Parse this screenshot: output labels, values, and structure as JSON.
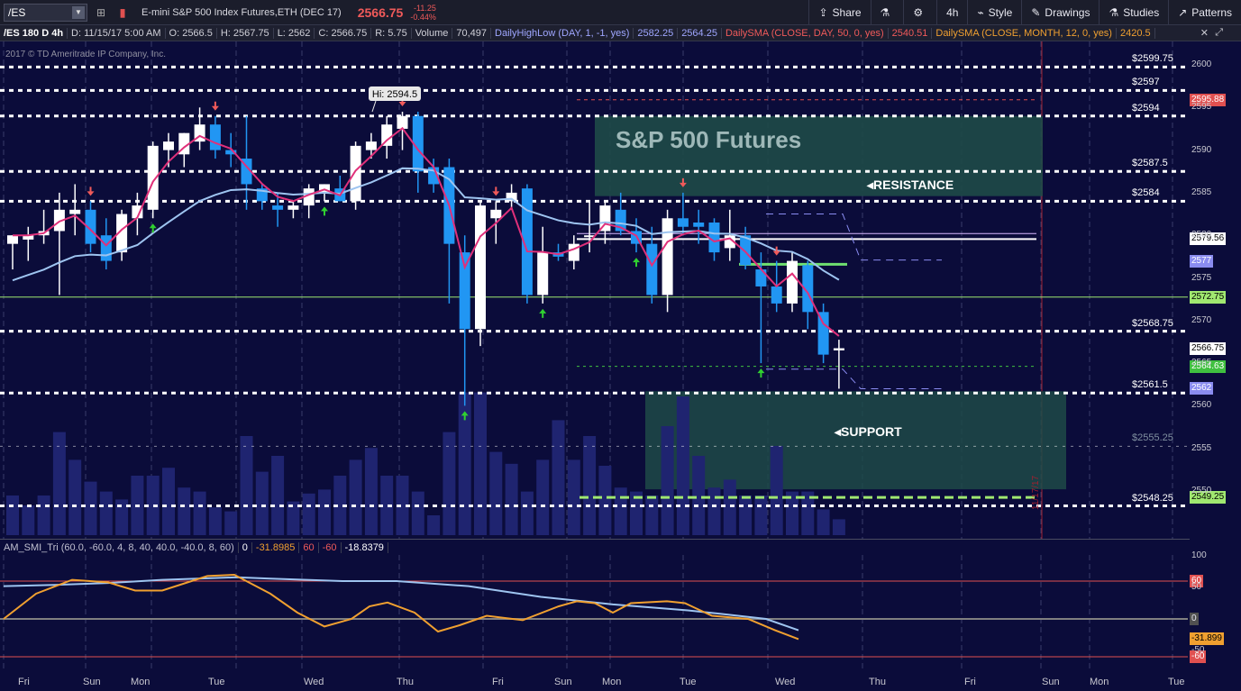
{
  "toolbar": {
    "symbol": "/ES",
    "description": "E-mini S&P 500 Index Futures,ETH (DEC 17)",
    "last_price": "2566.75",
    "change": "-11.25",
    "change_pct": "-0.44%",
    "share": "Share",
    "timeframe": "4h",
    "style": "Style",
    "drawings": "Drawings",
    "studies": "Studies",
    "patterns": "Patterns"
  },
  "infobar": {
    "symbol": "/ES 180 D 4h",
    "date": "D: 11/15/17 5:00 AM",
    "open": "O: 2566.5",
    "high": "H: 2567.75",
    "low": "L: 2562",
    "close": "C: 2566.75",
    "range": "R: 5.75",
    "volume_label": "Volume",
    "volume": "70,497",
    "dhl_study": "DailyHighLow (DAY, 1, -1, yes)",
    "dhl_high": "2582.25",
    "dhl_low": "2564.25",
    "sma_day": "DailySMA (CLOSE, DAY, 50, 0, yes)",
    "sma_day_value": "2540.51",
    "sma_month": "DailySMA (CLOSE, MONTH, 12, 0, yes)",
    "sma_month_value": "2420.5"
  },
  "copyright": "2017 © TD Ameritrade IP Company, Inc.",
  "chart_title": "S&P 500 Futures",
  "resistance_label": "RESISTANCE",
  "support_label": "SUPPORT",
  "hi_label": "Hi: 2594.5",
  "level_labels": [
    "$2599.75",
    "$2597",
    "$2594",
    "$2587.5",
    "$2584",
    "$2568.75",
    "$2561.5",
    "$2555.25",
    "$2548.25"
  ],
  "y_ticks": [
    "2600",
    "2595",
    "2590",
    "2585",
    "2580",
    "2575",
    "2570",
    "2565",
    "2560",
    "2555",
    "2550"
  ],
  "price_tags": [
    {
      "text": "2595.88",
      "bg": "#e05050",
      "fg": "#ffffff",
      "price": 2595.88
    },
    {
      "text": "2579.56",
      "bg": "#ffffff",
      "fg": "#000000",
      "price": 2579.56
    },
    {
      "text": "2577",
      "bg": "#8a8cf0",
      "fg": "#ffffff",
      "price": 2577
    },
    {
      "text": "2572.75",
      "bg": "#a0e870",
      "fg": "#000000",
      "price": 2572.75
    },
    {
      "text": "2566.75",
      "bg": "#ffffff",
      "fg": "#000000",
      "price": 2566.75
    },
    {
      "text": "2564.63",
      "bg": "#40c040",
      "fg": "#ffffff",
      "price": 2564.63
    },
    {
      "text": "2562",
      "bg": "#8a8cf0",
      "fg": "#ffffff",
      "price": 2562
    },
    {
      "text": "2549.25",
      "bg": "#a0e870",
      "fg": "#000000",
      "price": 2549.25
    }
  ],
  "x_days": [
    "Fri",
    "Sun",
    "Mon",
    "Tue",
    "Wed",
    "Thu",
    "Fri",
    "Sun",
    "Mon",
    "Tue",
    "Wed",
    "Thu",
    "Fri",
    "Sun",
    "Mon",
    "Tue"
  ],
  "indicator": {
    "name": "AM_SMI_Tri (60.0, -60.0, 4, 8, 40, 40.0, -40.0, 8, 60)",
    "v0": "0",
    "v1": "-31.8985",
    "v2": "60",
    "v3": "-60",
    "v4": "-18.8379",
    "scale": [
      "100",
      "50",
      "0",
      "-50"
    ],
    "tags": [
      {
        "text": "60",
        "bg": "#e05050",
        "fg": "#ffffff"
      },
      {
        "text": "0",
        "bg": "#505050",
        "fg": "#ffffff"
      },
      {
        "text": "-31.899",
        "bg": "#f0a030",
        "fg": "#000000"
      },
      {
        "text": "-60",
        "bg": "#e05050",
        "fg": "#ffffff"
      }
    ]
  },
  "vertical_date": "11/17/17",
  "colors": {
    "background": "#0b0c3a",
    "up_candle": "#ffffff",
    "down_candle": "#2196f3",
    "ema": "#e0307a",
    "sma": "#9ec4f0",
    "zone": "#1e4a48"
  },
  "chart_data": {
    "type": "candlestick",
    "ylim": [
      2545,
      2602
    ],
    "candles": [
      {
        "o": 2579,
        "h": 2580,
        "l": 2576,
        "c": 2580
      },
      {
        "o": 2579.5,
        "h": 2581,
        "l": 2577,
        "c": 2580
      },
      {
        "o": 2580,
        "h": 2583,
        "l": 2579,
        "c": 2580.5
      },
      {
        "o": 2580.5,
        "h": 2585,
        "l": 2573,
        "c": 2583
      },
      {
        "o": 2582.5,
        "h": 2586,
        "l": 2580,
        "c": 2583
      },
      {
        "o": 2583,
        "h": 2584,
        "l": 2578,
        "c": 2579
      },
      {
        "o": 2580,
        "h": 2582,
        "l": 2576,
        "c": 2577
      },
      {
        "o": 2578,
        "h": 2583,
        "l": 2577,
        "c": 2582.5
      },
      {
        "o": 2582,
        "h": 2585,
        "l": 2580,
        "c": 2583.5
      },
      {
        "o": 2583,
        "h": 2591,
        "l": 2582,
        "c": 2590.5
      },
      {
        "o": 2590,
        "h": 2592,
        "l": 2588,
        "c": 2591
      },
      {
        "o": 2589.5,
        "h": 2592,
        "l": 2588,
        "c": 2592
      },
      {
        "o": 2591,
        "h": 2595,
        "l": 2590,
        "c": 2593
      },
      {
        "o": 2593,
        "h": 2594,
        "l": 2589,
        "c": 2590
      },
      {
        "o": 2590,
        "h": 2592,
        "l": 2588,
        "c": 2589.5
      },
      {
        "o": 2589,
        "h": 2594,
        "l": 2583,
        "c": 2586
      },
      {
        "o": 2585.5,
        "h": 2586,
        "l": 2583,
        "c": 2584
      },
      {
        "o": 2583.5,
        "h": 2585,
        "l": 2581,
        "c": 2583
      },
      {
        "o": 2583,
        "h": 2584,
        "l": 2582,
        "c": 2583.5
      },
      {
        "o": 2583.5,
        "h": 2586,
        "l": 2582,
        "c": 2585.5
      },
      {
        "o": 2585,
        "h": 2586,
        "l": 2584,
        "c": 2586
      },
      {
        "o": 2585.5,
        "h": 2587,
        "l": 2584,
        "c": 2584
      },
      {
        "o": 2584,
        "h": 2591,
        "l": 2583,
        "c": 2590.5
      },
      {
        "o": 2590,
        "h": 2592,
        "l": 2589,
        "c": 2591
      },
      {
        "o": 2590.5,
        "h": 2594,
        "l": 2589,
        "c": 2593
      },
      {
        "o": 2592.5,
        "h": 2594.5,
        "l": 2590,
        "c": 2594
      },
      {
        "o": 2594,
        "h": 2594.5,
        "l": 2585,
        "c": 2587.5
      },
      {
        "o": 2588,
        "h": 2589,
        "l": 2585,
        "c": 2586
      },
      {
        "o": 2588,
        "h": 2589,
        "l": 2572,
        "c": 2579
      },
      {
        "o": 2578,
        "h": 2580,
        "l": 2560,
        "c": 2569
      },
      {
        "o": 2569,
        "h": 2584,
        "l": 2567,
        "c": 2583.5
      },
      {
        "o": 2582,
        "h": 2584,
        "l": 2579,
        "c": 2583
      },
      {
        "o": 2584,
        "h": 2586,
        "l": 2583,
        "c": 2585
      },
      {
        "o": 2585.5,
        "h": 2586,
        "l": 2572,
        "c": 2573
      },
      {
        "o": 2573,
        "h": 2581,
        "l": 2572,
        "c": 2578
      },
      {
        "o": 2578,
        "h": 2579,
        "l": 2577,
        "c": 2577.5
      },
      {
        "o": 2577,
        "h": 2580,
        "l": 2576,
        "c": 2579
      },
      {
        "o": 2580,
        "h": 2584,
        "l": 2578,
        "c": 2580
      },
      {
        "o": 2580.5,
        "h": 2584,
        "l": 2579,
        "c": 2583.5
      },
      {
        "o": 2583,
        "h": 2585,
        "l": 2580,
        "c": 2580.5
      },
      {
        "o": 2580.5,
        "h": 2582,
        "l": 2578,
        "c": 2579
      },
      {
        "o": 2579,
        "h": 2581,
        "l": 2572,
        "c": 2573
      },
      {
        "o": 2573,
        "h": 2583,
        "l": 2571,
        "c": 2582
      },
      {
        "o": 2582,
        "h": 2585,
        "l": 2580,
        "c": 2581
      },
      {
        "o": 2581.5,
        "h": 2583,
        "l": 2579,
        "c": 2581
      },
      {
        "o": 2581.5,
        "h": 2582,
        "l": 2577,
        "c": 2578
      },
      {
        "o": 2578.5,
        "h": 2583,
        "l": 2577,
        "c": 2580
      },
      {
        "o": 2580,
        "h": 2581,
        "l": 2576,
        "c": 2576.5
      },
      {
        "o": 2576,
        "h": 2578,
        "l": 2565,
        "c": 2574
      },
      {
        "o": 2574,
        "h": 2577,
        "l": 2571,
        "c": 2572
      },
      {
        "o": 2572,
        "h": 2578,
        "l": 2571,
        "c": 2577
      },
      {
        "o": 2576.5,
        "h": 2577,
        "l": 2569,
        "c": 2571
      },
      {
        "o": 2571,
        "h": 2572,
        "l": 2565,
        "c": 2566
      },
      {
        "o": 2566.5,
        "h": 2567.75,
        "l": 2562,
        "c": 2566.75
      }
    ]
  }
}
